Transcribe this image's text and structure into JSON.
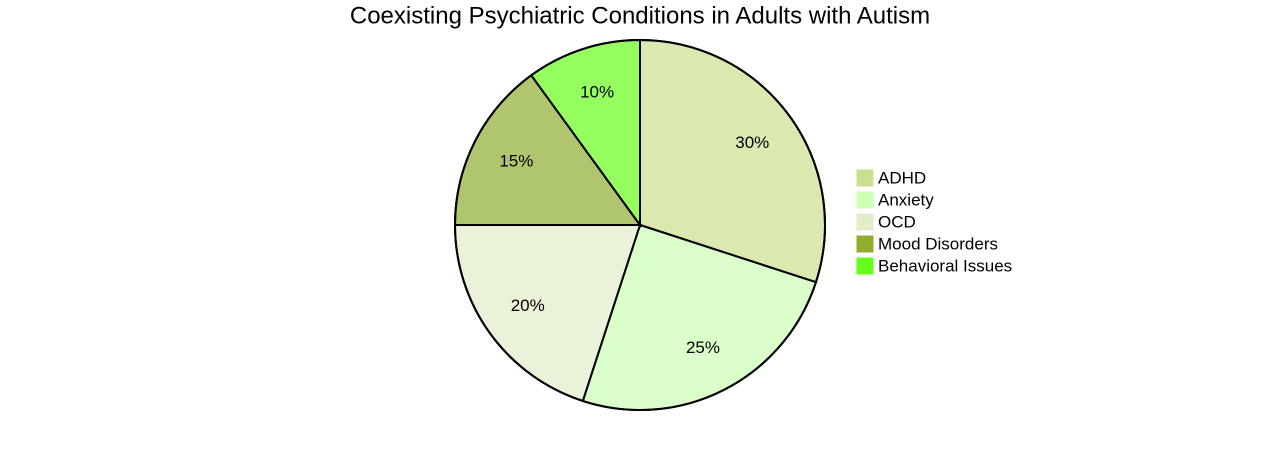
{
  "chart_data": {
    "type": "pie",
    "title": "Coexisting Psychiatric Conditions in Adults with Autism",
    "categories": [
      "ADHD",
      "Anxiety",
      "OCD",
      "Mood Disorders",
      "Behavioral Issues"
    ],
    "values": [
      30,
      25,
      20,
      15,
      10
    ],
    "value_labels": [
      "30%",
      "25%",
      "20%",
      "15%",
      "10%"
    ],
    "colors": [
      "#c9e08f",
      "#ccffb3",
      "#e2edcb",
      "#8fae30",
      "#66ff1a"
    ]
  }
}
